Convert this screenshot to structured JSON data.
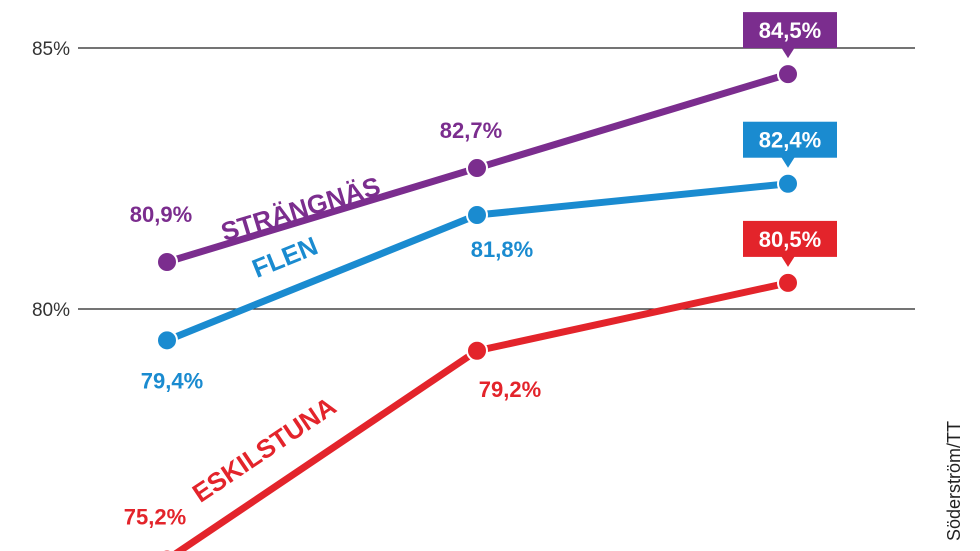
{
  "chart_data": {
    "type": "line",
    "ylim": [
      75,
      85.5
    ],
    "yticks": [
      {
        "value": 80,
        "label": "80%"
      },
      {
        "value": 85,
        "label": "85%"
      }
    ],
    "grid": true,
    "series": [
      {
        "name": "STRÄNGNÄS",
        "color": "#7b2d8e",
        "values": [
          80.9,
          82.7,
          84.5
        ],
        "labels": [
          "80,9%",
          "82,7%",
          "84,5%"
        ]
      },
      {
        "name": "FLEN",
        "color": "#1a8bd0",
        "values": [
          79.4,
          81.8,
          82.4
        ],
        "labels": [
          "79,4%",
          "81,8%",
          "82,4%"
        ]
      },
      {
        "name": "ESKILSTUNA",
        "color": "#e3242b",
        "values": [
          75.2,
          79.2,
          80.5
        ],
        "labels": [
          "75,2%",
          "79,2%",
          "80,5%"
        ]
      }
    ]
  },
  "credit": "Söderström/TT"
}
